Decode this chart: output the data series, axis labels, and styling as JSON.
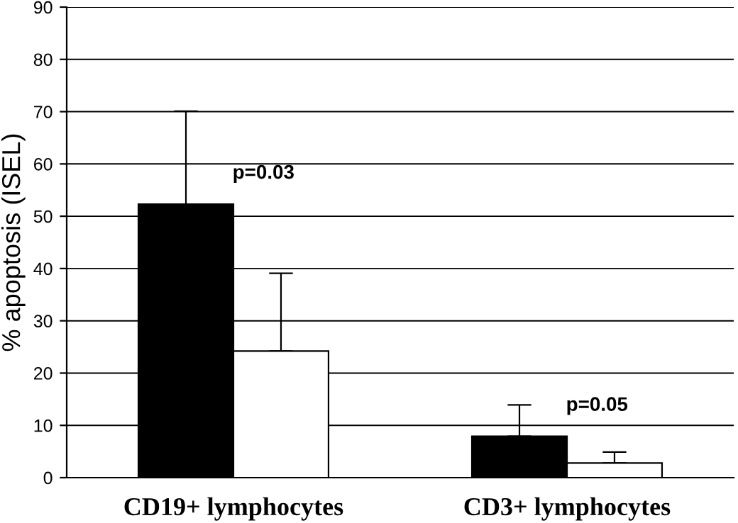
{
  "chart_data": {
    "type": "bar",
    "ylabel": "% apoptosis (ISEL)",
    "categories": [
      "CD19+ lymphocytes",
      "CD3+ lymphocytes"
    ],
    "series": [
      {
        "color": "#000000",
        "values": [
          52.3,
          7.9
        ],
        "errors": [
          [
            52.3,
            70.1
          ],
          [
            7.9,
            13.9
          ]
        ]
      },
      {
        "color": "#ffffff",
        "values": [
          24.2,
          2.8
        ],
        "errors": [
          [
            24.2,
            39.1
          ],
          [
            2.8,
            4.9
          ]
        ]
      }
    ],
    "annotations": [
      "p=0.03",
      "p=0.05"
    ],
    "ylim": [
      0,
      90
    ],
    "yticks": [
      0,
      10,
      20,
      30,
      40,
      50,
      60,
      70,
      80,
      90
    ],
    "grid": "y"
  }
}
